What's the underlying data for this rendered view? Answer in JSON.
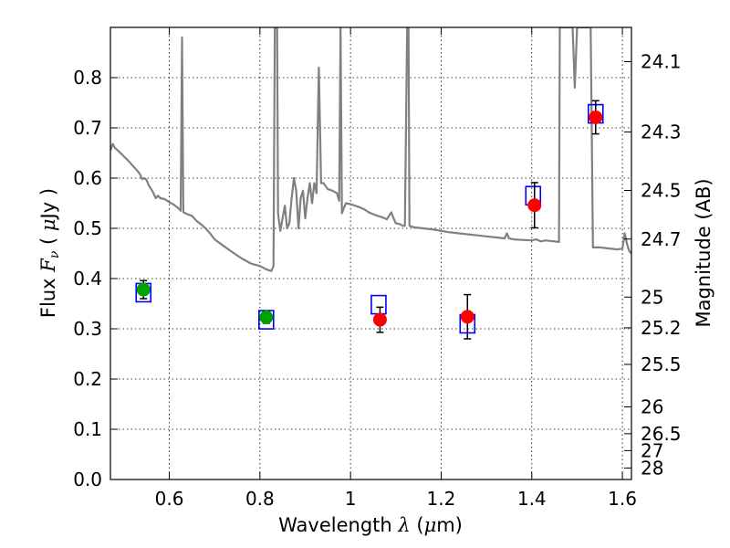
{
  "chart_data": {
    "type": "scatter",
    "xlabel": "Wavelength  λ (μm)",
    "xlabel_parts": {
      "pre": "Wavelength  ",
      "sym": "λ",
      "open": " (",
      "mu": "μ",
      "post": "m)"
    },
    "ylabel": "Flux  Fν  ( μJy )",
    "ylabel_parts": {
      "pre": "Flux  ",
      "sym": "F",
      "sub": "ν",
      "open": "  ( ",
      "mu": "μ",
      "post": "Jy )"
    },
    "y2label": "Magnitude (AB)",
    "xlim": [
      0.47,
      1.62
    ],
    "ylim": [
      0.0,
      0.9
    ],
    "grid": true,
    "xticks": [
      {
        "v": 0.6,
        "label": "0.6"
      },
      {
        "v": 0.8,
        "label": "0.8"
      },
      {
        "v": 1.0,
        "label": "1"
      },
      {
        "v": 1.2,
        "label": "1.2"
      },
      {
        "v": 1.4,
        "label": "1.4"
      },
      {
        "v": 1.6,
        "label": "1.6"
      }
    ],
    "yticks": [
      {
        "v": 0.0,
        "label": "0.0"
      },
      {
        "v": 0.1,
        "label": "0.1"
      },
      {
        "v": 0.2,
        "label": "0.2"
      },
      {
        "v": 0.3,
        "label": "0.3"
      },
      {
        "v": 0.4,
        "label": "0.4"
      },
      {
        "v": 0.5,
        "label": "0.5"
      },
      {
        "v": 0.6,
        "label": "0.6"
      },
      {
        "v": 0.7,
        "label": "0.7"
      },
      {
        "v": 0.8,
        "label": "0.8"
      }
    ],
    "magnitude_ticks": [
      {
        "mag": 24.1,
        "label": "24.1"
      },
      {
        "mag": 24.3,
        "label": "24.3"
      },
      {
        "mag": 24.5,
        "label": "24.5"
      },
      {
        "mag": 24.7,
        "label": "24.7"
      },
      {
        "mag": 25.0,
        "label": "25"
      },
      {
        "mag": 25.2,
        "label": "25.2"
      },
      {
        "mag": 25.5,
        "label": "25.5"
      },
      {
        "mag": 26.0,
        "label": "26"
      },
      {
        "mag": 26.5,
        "label": "26.5"
      },
      {
        "mag": 27.0,
        "label": "27"
      },
      {
        "mag": 28.0,
        "label": "28"
      }
    ],
    "model_spectrum": {
      "name": "model spectrum",
      "color": "#808080",
      "points": [
        [
          0.47,
          0.655
        ],
        [
          0.475,
          0.668
        ],
        [
          0.48,
          0.66
        ],
        [
          0.49,
          0.652
        ],
        [
          0.5,
          0.643
        ],
        [
          0.51,
          0.634
        ],
        [
          0.52,
          0.624
        ],
        [
          0.53,
          0.614
        ],
        [
          0.535,
          0.608
        ],
        [
          0.54,
          0.598
        ],
        [
          0.545,
          0.6
        ],
        [
          0.55,
          0.596
        ],
        [
          0.555,
          0.585
        ],
        [
          0.56,
          0.578
        ],
        [
          0.565,
          0.57
        ],
        [
          0.57,
          0.56
        ],
        [
          0.575,
          0.565
        ],
        [
          0.58,
          0.56
        ],
        [
          0.59,
          0.558
        ],
        [
          0.6,
          0.552
        ],
        [
          0.61,
          0.547
        ],
        [
          0.62,
          0.54
        ],
        [
          0.625,
          0.535
        ],
        [
          0.628,
          0.88
        ],
        [
          0.631,
          0.532
        ],
        [
          0.64,
          0.528
        ],
        [
          0.65,
          0.525
        ],
        [
          0.66,
          0.515
        ],
        [
          0.67,
          0.508
        ],
        [
          0.68,
          0.5
        ],
        [
          0.69,
          0.49
        ],
        [
          0.7,
          0.478
        ],
        [
          0.72,
          0.465
        ],
        [
          0.74,
          0.452
        ],
        [
          0.76,
          0.44
        ],
        [
          0.78,
          0.43
        ],
        [
          0.8,
          0.425
        ],
        [
          0.815,
          0.418
        ],
        [
          0.825,
          0.415
        ],
        [
          0.83,
          0.425
        ],
        [
          0.833,
          0.9
        ],
        [
          0.838,
          0.9
        ],
        [
          0.84,
          0.53
        ],
        [
          0.845,
          0.495
        ],
        [
          0.85,
          0.52
        ],
        [
          0.855,
          0.545
        ],
        [
          0.86,
          0.5
        ],
        [
          0.865,
          0.51
        ],
        [
          0.87,
          0.56
        ],
        [
          0.875,
          0.6
        ],
        [
          0.88,
          0.575
        ],
        [
          0.885,
          0.5
        ],
        [
          0.89,
          0.56
        ],
        [
          0.895,
          0.575
        ],
        [
          0.9,
          0.52
        ],
        [
          0.905,
          0.56
        ],
        [
          0.91,
          0.59
        ],
        [
          0.915,
          0.55
        ],
        [
          0.92,
          0.59
        ],
        [
          0.925,
          0.57
        ],
        [
          0.93,
          0.82
        ],
        [
          0.935,
          0.59
        ],
        [
          0.94,
          0.59
        ],
        [
          0.95,
          0.578
        ],
        [
          0.96,
          0.575
        ],
        [
          0.97,
          0.57
        ],
        [
          0.975,
          0.555
        ],
        [
          0.978,
          0.9
        ],
        [
          0.981,
          0.53
        ],
        [
          0.985,
          0.54
        ],
        [
          0.99,
          0.55
        ],
        [
          1.0,
          0.548
        ],
        [
          1.01,
          0.545
        ],
        [
          1.02,
          0.542
        ],
        [
          1.03,
          0.538
        ],
        [
          1.04,
          0.532
        ],
        [
          1.05,
          0.528
        ],
        [
          1.06,
          0.525
        ],
        [
          1.07,
          0.522
        ],
        [
          1.08,
          0.518
        ],
        [
          1.085,
          0.525
        ],
        [
          1.09,
          0.532
        ],
        [
          1.095,
          0.52
        ],
        [
          1.1,
          0.51
        ],
        [
          1.11,
          0.508
        ],
        [
          1.115,
          0.505
        ],
        [
          1.12,
          0.505
        ],
        [
          1.125,
          0.9
        ],
        [
          1.128,
          0.9
        ],
        [
          1.13,
          0.505
        ],
        [
          1.14,
          0.502
        ],
        [
          1.16,
          0.5
        ],
        [
          1.18,
          0.498
        ],
        [
          1.2,
          0.495
        ],
        [
          1.22,
          0.492
        ],
        [
          1.24,
          0.49
        ],
        [
          1.26,
          0.488
        ],
        [
          1.28,
          0.486
        ],
        [
          1.3,
          0.484
        ],
        [
          1.32,
          0.482
        ],
        [
          1.34,
          0.48
        ],
        [
          1.345,
          0.49
        ],
        [
          1.35,
          0.48
        ],
        [
          1.36,
          0.478
        ],
        [
          1.38,
          0.477
        ],
        [
          1.4,
          0.476
        ],
        [
          1.41,
          0.478
        ],
        [
          1.42,
          0.474
        ],
        [
          1.43,
          0.476
        ],
        [
          1.44,
          0.475
        ],
        [
          1.45,
          0.474
        ],
        [
          1.46,
          0.473
        ],
        [
          1.462,
          0.9
        ],
        [
          1.49,
          0.9
        ],
        [
          1.495,
          0.78
        ],
        [
          1.5,
          0.9
        ],
        [
          1.53,
          0.9
        ],
        [
          1.535,
          0.462
        ],
        [
          1.55,
          0.462
        ],
        [
          1.57,
          0.46
        ],
        [
          1.59,
          0.458
        ],
        [
          1.6,
          0.46
        ],
        [
          1.605,
          0.49
        ],
        [
          1.61,
          0.47
        ],
        [
          1.615,
          0.455
        ],
        [
          1.62,
          0.45
        ]
      ]
    },
    "observed_points": [
      {
        "band": "optical",
        "x": 0.543,
        "y": 0.378,
        "err": 0.018,
        "color": "#00a000"
      },
      {
        "band": "optical",
        "x": 0.814,
        "y": 0.323,
        "err": 0.012,
        "color": "#00a000"
      },
      {
        "band": "nir",
        "x": 1.065,
        "y": 0.318,
        "err": 0.025,
        "color": "#ff0000"
      },
      {
        "band": "nir",
        "x": 1.258,
        "y": 0.324,
        "err": 0.044,
        "color": "#ff0000"
      },
      {
        "band": "nir",
        "x": 1.406,
        "y": 0.546,
        "err": 0.045,
        "color": "#ff0000"
      },
      {
        "band": "nir",
        "x": 1.541,
        "y": 0.721,
        "err": 0.033,
        "color": "#ff0000"
      }
    ],
    "model_photometry": [
      {
        "x": 0.543,
        "y": 0.372
      },
      {
        "x": 0.814,
        "y": 0.318
      },
      {
        "x": 1.062,
        "y": 0.348
      },
      {
        "x": 1.258,
        "y": 0.31
      },
      {
        "x": 1.403,
        "y": 0.565
      },
      {
        "x": 1.541,
        "y": 0.728
      }
    ],
    "colors": {
      "spectrum": "#808080",
      "model_box": "#0000ff",
      "optical": "#00a000",
      "nir": "#ff0000",
      "grid": "#000000"
    }
  }
}
